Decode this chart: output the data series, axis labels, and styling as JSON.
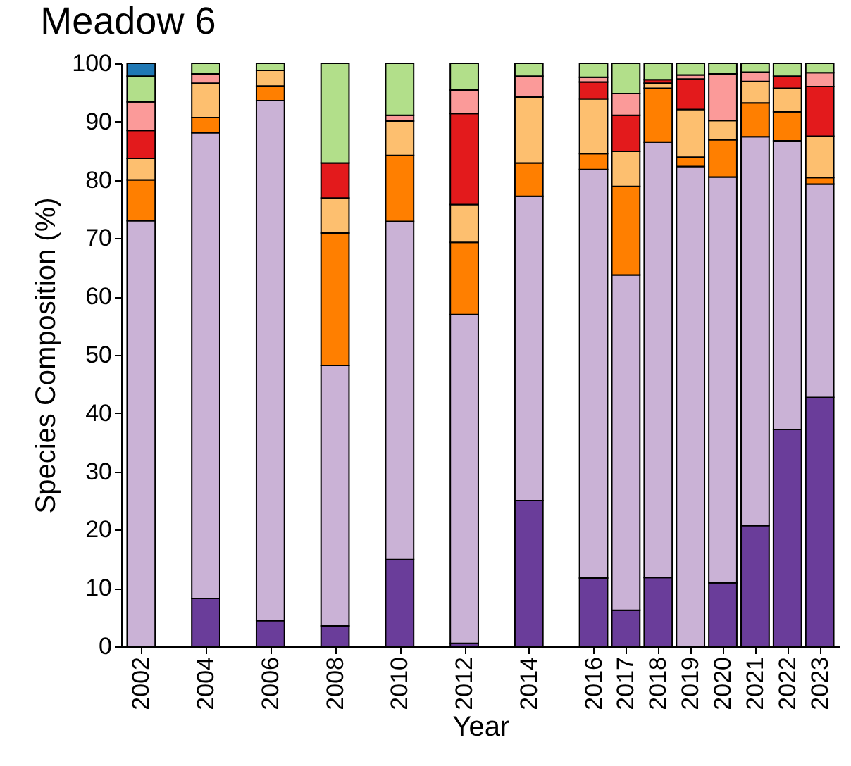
{
  "chart_data": {
    "type": "bar",
    "title": "Meadow 6",
    "xlabel": "Year",
    "ylabel": "Species Composition (%)",
    "stacked": true,
    "legend": false,
    "grid": false,
    "x": [
      2002,
      2004,
      2006,
      2008,
      2010,
      2012,
      2014,
      2016,
      2017,
      2018,
      2019,
      2020,
      2021,
      2022,
      2023
    ],
    "xlim": [
      2001.6,
      2023.4
    ],
    "xticks": [
      2002,
      2004,
      2006,
      2008,
      2010,
      2012,
      2014,
      2016,
      2017,
      2018,
      2019,
      2020,
      2021,
      2022,
      2023
    ],
    "ylim": [
      0,
      100
    ],
    "yticks": [
      0,
      10,
      20,
      30,
      40,
      50,
      60,
      70,
      80,
      90,
      100
    ],
    "series": [
      {
        "color": "#6a3d9a",
        "values": [
          null,
          8.2,
          4.4,
          3.5,
          14.9,
          0.5,
          25,
          11.7,
          6.2,
          11.8,
          null,
          10.9,
          20.7,
          37.2,
          42.7
        ]
      },
      {
        "color": "#cab2d6",
        "values": [
          73,
          79.9,
          89.2,
          44.7,
          58,
          56.4,
          52.2,
          70.1,
          57.5,
          74.7,
          82.3,
          69.6,
          66.7,
          49.5,
          36.6
        ]
      },
      {
        "color": "#ff7f00",
        "values": [
          7,
          2.6,
          2.5,
          22.7,
          11.3,
          12.4,
          5.7,
          2.7,
          15.2,
          9.2,
          1.6,
          6.4,
          5.8,
          5,
          1.1
        ]
      },
      {
        "color": "#fdbf6f",
        "values": [
          3.7,
          5.9,
          2.7,
          6,
          5.9,
          6.5,
          11.3,
          9.4,
          6,
          0.9,
          8.2,
          3.3,
          3.7,
          4,
          7.1
        ]
      },
      {
        "color": "#e31a1c",
        "values": [
          4.8,
          null,
          null,
          6,
          null,
          15.6,
          null,
          2.9,
          6.2,
          0.6,
          5.2,
          null,
          null,
          2.1,
          8.5
        ]
      },
      {
        "color": "#fb9a99",
        "values": [
          4.9,
          1.6,
          null,
          null,
          1,
          4,
          3.6,
          0.8,
          3.7,
          null,
          0.7,
          8,
          1.6,
          null,
          2.4
        ]
      },
      {
        "color": "#b2df8a",
        "values": [
          4.4,
          1.8,
          1.2,
          17.1,
          8.9,
          4.6,
          2.2,
          2.4,
          5.2,
          2.8,
          2,
          1.8,
          1.5,
          2.2,
          1.6
        ]
      },
      {
        "color": "#1f78b4",
        "values": [
          2.2,
          null,
          null,
          null,
          null,
          null,
          null,
          null,
          null,
          null,
          null,
          null,
          null,
          null,
          null
        ]
      }
    ]
  }
}
